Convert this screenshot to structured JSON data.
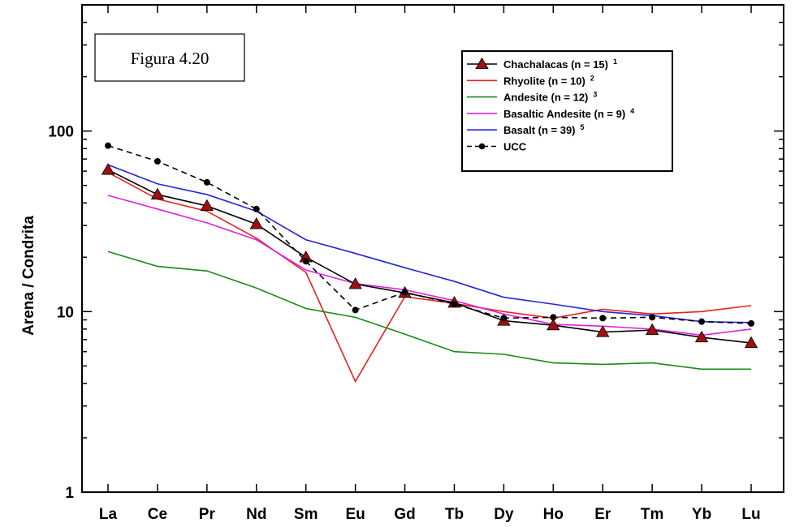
{
  "chart_data": {
    "type": "line",
    "ylabel": "Arena / Condrita",
    "y_scale": "log",
    "ylim": [
      1,
      500
    ],
    "yticks": [
      {
        "value": 1,
        "label": "1"
      },
      {
        "value": 10,
        "label": "10"
      },
      {
        "value": 100,
        "label": "100"
      }
    ],
    "categories": [
      "La",
      "Ce",
      "Pr",
      "Nd",
      "Sm",
      "Eu",
      "Gd",
      "Tb",
      "Dy",
      "Ho",
      "Er",
      "Tm",
      "Yb",
      "Lu"
    ],
    "annotation": "Figura 4.20",
    "legend_position": "top-right",
    "grid": false,
    "series": [
      {
        "name": "Chachalacas (n = 15)",
        "sup": "1",
        "color": "#000000",
        "marker": "triangle",
        "marker_color": "#a01010",
        "dash": false,
        "values": [
          61,
          44.5,
          38.5,
          30.5,
          20,
          14.2,
          12.7,
          11.2,
          8.9,
          8.4,
          7.7,
          7.9,
          7.2,
          6.7
        ]
      },
      {
        "name": "Rhyolite (n = 10)",
        "sup": "2",
        "color": "#e8201c",
        "marker": "none",
        "dash": false,
        "values": [
          59,
          42,
          36,
          25.5,
          16.5,
          4.1,
          12.1,
          11.1,
          10,
          9.2,
          10.3,
          9.7,
          10,
          10.8
        ]
      },
      {
        "name": "Andesite (n = 12)",
        "sup": "3",
        "color": "#1a8a1a",
        "marker": "none",
        "dash": false,
        "values": [
          21.5,
          17.8,
          16.8,
          13.5,
          10.4,
          9.3,
          7.5,
          6,
          5.8,
          5.2,
          5.1,
          5.2,
          4.8,
          4.8
        ]
      },
      {
        "name": "Basaltic Andesite (n = 9)",
        "sup": "4",
        "color": "#e020e0",
        "marker": "none",
        "dash": false,
        "values": [
          44,
          37,
          31,
          25,
          17,
          14.3,
          13.2,
          11.5,
          9.7,
          8.5,
          8.3,
          8,
          7.4,
          8
        ]
      },
      {
        "name": "Basalt (n = 39)",
        "sup": "5",
        "color": "#2424d8",
        "marker": "none",
        "dash": false,
        "values": [
          65,
          51,
          44.5,
          36,
          25,
          21,
          17.5,
          14.7,
          12,
          11,
          10,
          9.5,
          8.8,
          8.7
        ]
      },
      {
        "name": "UCC",
        "sup": "",
        "color": "#000000",
        "marker": "circle",
        "marker_color": "#000000",
        "dash": true,
        "values": [
          83,
          68,
          52,
          37,
          19,
          10.2,
          12.8,
          11,
          9.2,
          9.3,
          9.2,
          9.3,
          8.8,
          8.6
        ]
      }
    ]
  }
}
